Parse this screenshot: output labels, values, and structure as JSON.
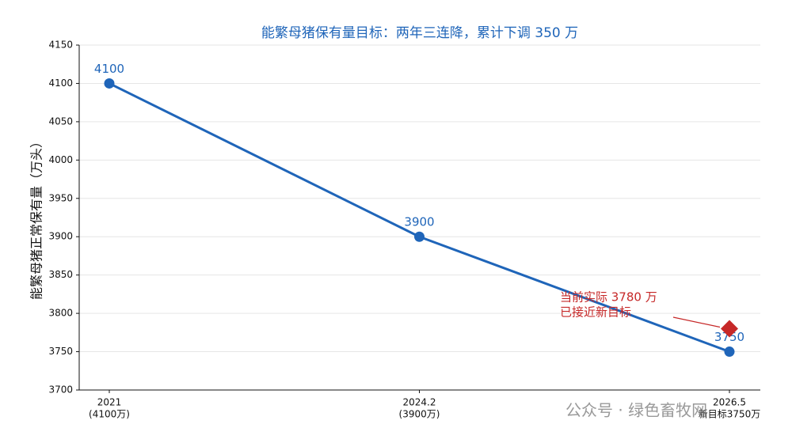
{
  "chart_data": {
    "type": "line",
    "title": "能繁母猪保有量目标：两年三连降，累计下调 350 万",
    "y_label": "能繁母猪正常保有量（万头）",
    "categories": [
      [
        "2021",
        "(4100万)"
      ],
      [
        "2024.2",
        "(3900万)"
      ],
      [
        "2026.5",
        "新目标3750万"
      ]
    ],
    "series": [
      {
        "color": "#1f65b9",
        "marker": "circle",
        "values": [
          4100,
          3900,
          3750
        ]
      },
      {
        "color": "#c62828",
        "marker": "diamond",
        "values": [
          null,
          null,
          3780
        ]
      }
    ],
    "ylim": [
      3700,
      4150
    ],
    "yticks": [
      3700,
      3750,
      3800,
      3850,
      3900,
      3950,
      4000,
      4050,
      4100,
      4150
    ],
    "grid": true,
    "annotation": {
      "text": [
        "当前实际 3780 万",
        "已接近新目标"
      ],
      "color": "#c62828"
    },
    "watermark": "公众号 · 绿色畜牧网"
  }
}
